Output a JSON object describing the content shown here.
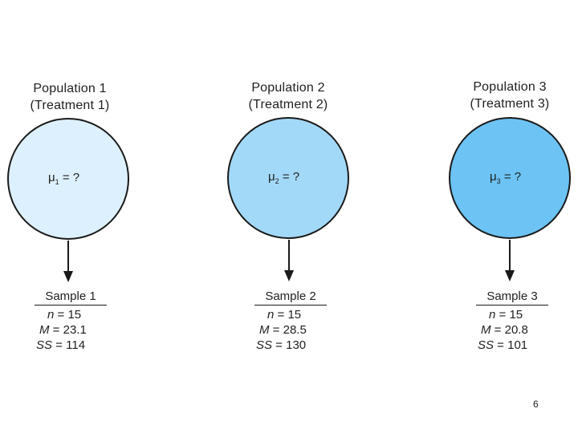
{
  "populations": [
    {
      "title_line1": "Population 1",
      "title_line2": "(Treatment 1)",
      "mu_symbol": "μ",
      "mu_subscript": "1",
      "mu_value": " = ?",
      "fill": "#ddf0fd",
      "sample": {
        "label": "Sample 1",
        "n_value": "15",
        "m_value": "23.1",
        "ss_value": "114"
      }
    },
    {
      "title_line1": "Population 2",
      "title_line2": "(Treatment 2)",
      "mu_symbol": "μ",
      "mu_subscript": "2",
      "mu_value": " = ?",
      "fill": "#a3d9f8",
      "sample": {
        "label": "Sample 2",
        "n_value": "15",
        "m_value": "28.5",
        "ss_value": "130"
      }
    },
    {
      "title_line1": "Population 3",
      "title_line2": "(Treatment 3)",
      "mu_symbol": "μ",
      "mu_subscript": "3",
      "mu_value": " = ?",
      "fill": "#6cc3f4",
      "sample": {
        "label": "Sample 3",
        "n_value": "15",
        "m_value": "20.8",
        "ss_value": "101"
      }
    }
  ],
  "stat_labels": {
    "n": "n",
    "m": "M",
    "ss": "SS",
    "equals": " = "
  },
  "page_number": "6"
}
